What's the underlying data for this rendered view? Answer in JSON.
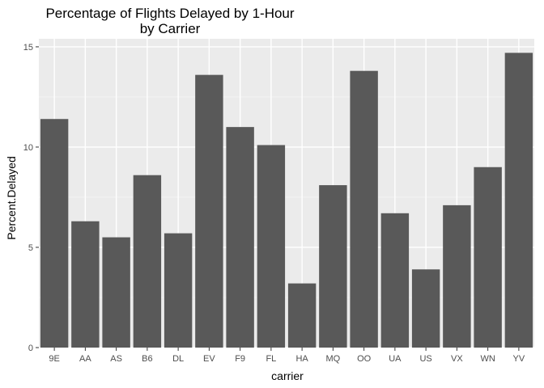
{
  "chart_data": {
    "type": "bar",
    "title_lines": [
      "Percentage of Flights Delayed by 1-Hour",
      "by Carrier"
    ],
    "xlabel": "carrier",
    "ylabel": "Percent.Delayed",
    "categories": [
      "9E",
      "AA",
      "AS",
      "B6",
      "DL",
      "EV",
      "F9",
      "FL",
      "HA",
      "MQ",
      "OO",
      "UA",
      "US",
      "VX",
      "WN",
      "YV"
    ],
    "values": [
      11.4,
      6.3,
      5.5,
      8.6,
      5.7,
      13.6,
      11.0,
      10.1,
      3.2,
      8.1,
      13.8,
      6.7,
      3.9,
      7.1,
      9.0,
      14.7
    ],
    "ylim": [
      0,
      15.4
    ],
    "yticks": [
      0,
      5,
      10,
      15
    ],
    "grid": true,
    "colors": {
      "bar": "#595959",
      "panel": "#ebebeb",
      "grid_major": "#ffffff",
      "grid_minor": "#f5f5f5",
      "tick": "#333333"
    }
  }
}
